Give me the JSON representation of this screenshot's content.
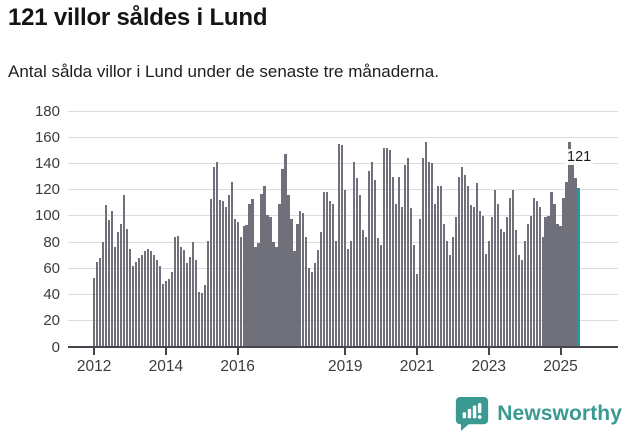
{
  "header": {
    "title": "121 villor såldes i Lund",
    "subtitle": "Antal sålda villor i Lund under de senaste tre månaderna."
  },
  "chart_data": {
    "type": "bar",
    "title": "121 villor såldes i Lund",
    "subtitle": "Antal sålda villor i Lund under de senaste tre månaderna.",
    "ylabel": "",
    "xlabel": "",
    "ylim": [
      0,
      180
    ],
    "y_tick_labels": [
      "0",
      "20",
      "40",
      "60",
      "80",
      "100",
      "120",
      "140",
      "160",
      "180"
    ],
    "x_tick_labels": [
      "2012",
      "2014",
      "2016",
      "2019",
      "2021",
      "2023",
      "2025"
    ],
    "x_tick_years": [
      2012,
      2014,
      2016,
      2019,
      2021,
      2023,
      2025
    ],
    "start_year": 2012,
    "grid": true,
    "legend": false,
    "bar_unit": "months",
    "values": [
      53,
      65,
      68,
      80,
      108,
      97,
      104,
      76,
      88,
      94,
      116,
      90,
      75,
      62,
      65,
      68,
      70,
      73,
      75,
      73,
      70,
      66,
      62,
      48,
      50,
      52,
      57,
      84,
      85,
      76,
      74,
      64,
      69,
      80,
      66,
      42,
      41,
      47,
      81,
      113,
      137,
      141,
      112,
      111,
      107,
      116,
      126,
      98,
      95,
      84,
      92,
      93,
      109,
      113,
      76,
      79,
      117,
      123,
      101,
      99,
      80,
      76,
      109,
      136,
      147,
      116,
      98,
      73,
      94,
      104,
      102,
      84,
      60,
      57,
      64,
      74,
      88,
      118,
      118,
      111,
      109,
      81,
      155,
      154,
      120,
      75,
      81,
      141,
      129,
      116,
      89,
      84,
      134,
      141,
      127,
      83,
      78,
      152,
      152,
      150,
      130,
      109,
      130,
      107,
      139,
      144,
      106,
      78,
      56,
      98,
      144,
      156,
      141,
      140,
      109,
      123,
      123,
      94,
      81,
      70,
      84,
      99,
      130,
      137,
      131,
      123,
      108,
      107,
      125,
      104,
      100,
      71,
      81,
      99,
      120,
      109,
      90,
      88,
      99,
      114,
      120,
      89,
      70,
      66,
      81,
      94,
      100,
      114,
      111,
      107,
      84,
      99,
      100,
      118,
      109,
      94,
      92,
      114,
      126,
      156,
      146,
      129,
      121
    ],
    "highlight": {
      "index": 162,
      "value": 121,
      "label": "121"
    },
    "colors": {
      "bar": "#70707a",
      "highlight": "#18a099",
      "grid": "#dcdcdc",
      "axis": "#45454c",
      "tick_text": "#3c3c3c"
    }
  },
  "annotation": {
    "value_label": "121"
  },
  "footer": {
    "brand": "Newsworthy",
    "brand_color": "#3a9a91"
  }
}
